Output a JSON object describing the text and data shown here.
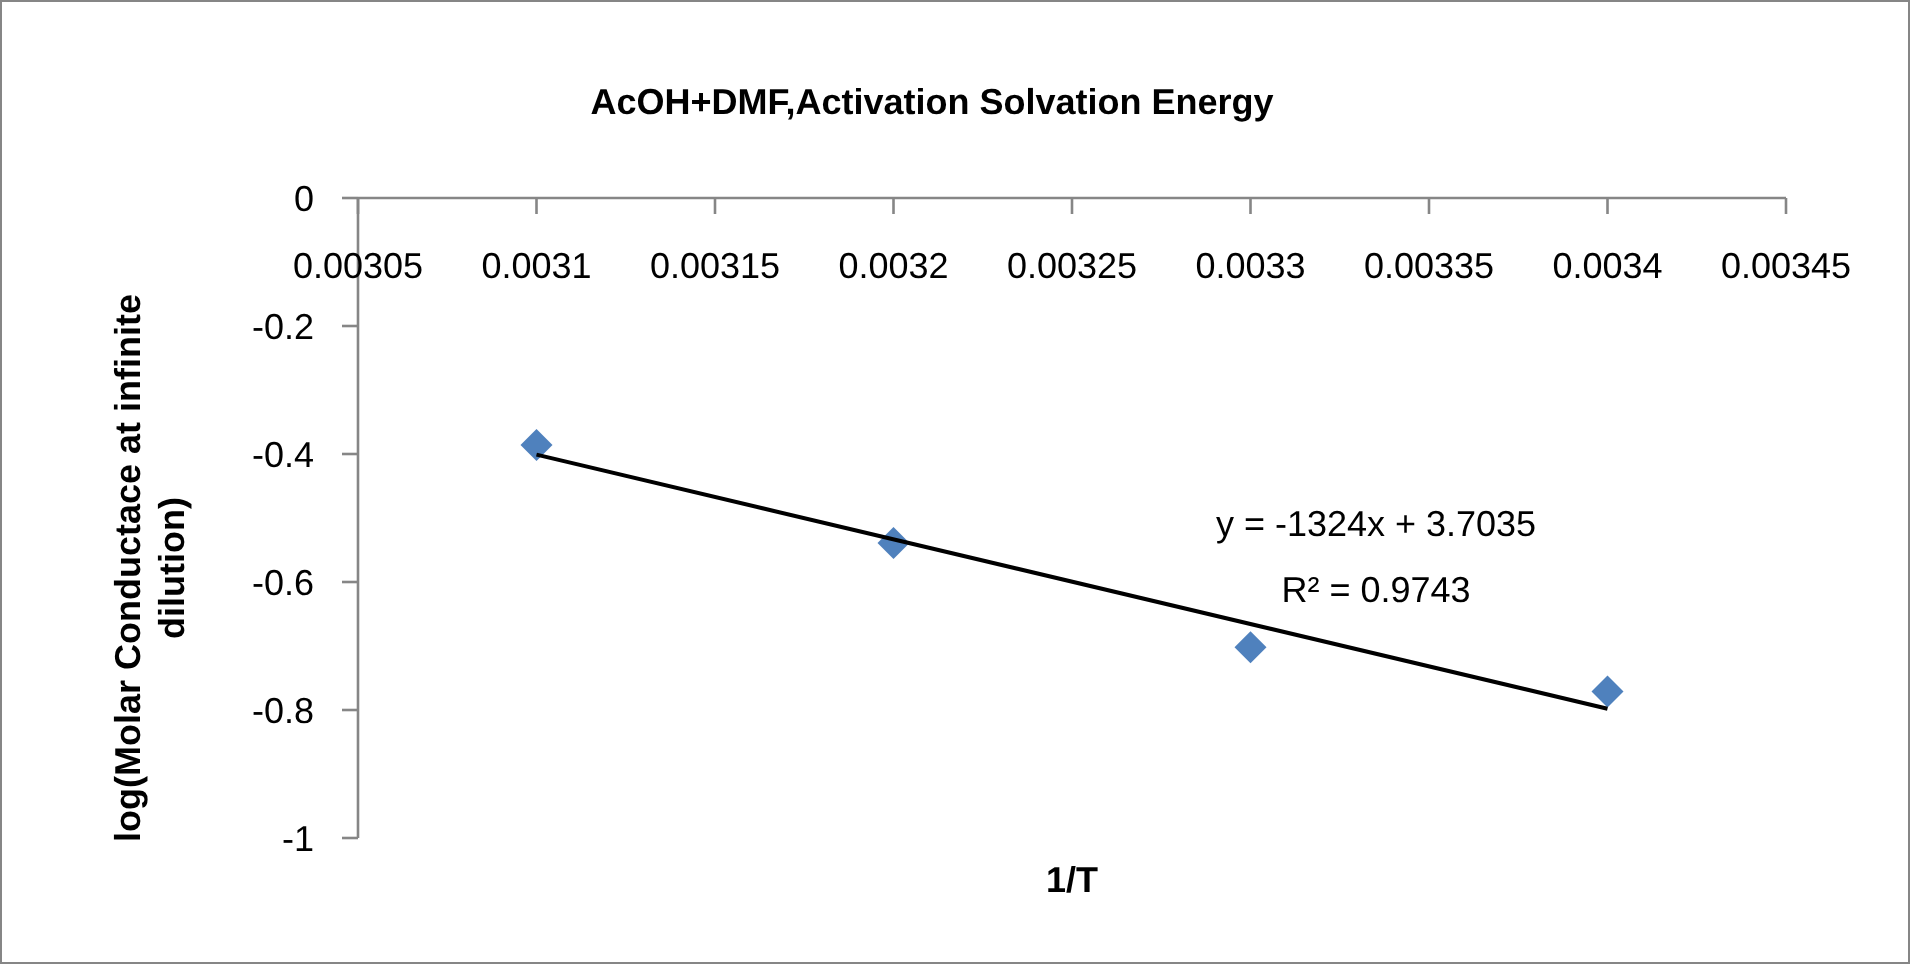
{
  "chart_data": {
    "type": "scatter",
    "title": "AcOH+DMF,Activation Solvation Energy",
    "xlabel": "1/T",
    "ylabel": "log(Molar Conductace at infinite dilution)",
    "x": [
      0.0031,
      0.0032,
      0.0033,
      0.0034
    ],
    "series": [
      {
        "color": "#4f81bd",
        "marker": "diamond",
        "values": [
          -0.386,
          -0.539,
          -0.702,
          -0.771
        ]
      },
      {
        "type": "line",
        "color": "#000000",
        "marker": "none",
        "x": [
          0.0031,
          0.0034
        ],
        "values": [
          -0.401,
          -0.798
        ]
      }
    ],
    "xlim": [
      0.00305,
      0.00345
    ],
    "xticks": [
      0.00305,
      0.0031,
      0.00315,
      0.0032,
      0.00325,
      0.0033,
      0.00335,
      0.0034,
      0.00345
    ],
    "ylim": [
      -1,
      0
    ],
    "yticks": [
      0,
      -0.2,
      -0.4,
      -0.6,
      -0.8,
      -1
    ],
    "annotations": [
      "y = -1324x + 3.7035",
      "R² = 0.9743"
    ],
    "grid": false
  }
}
